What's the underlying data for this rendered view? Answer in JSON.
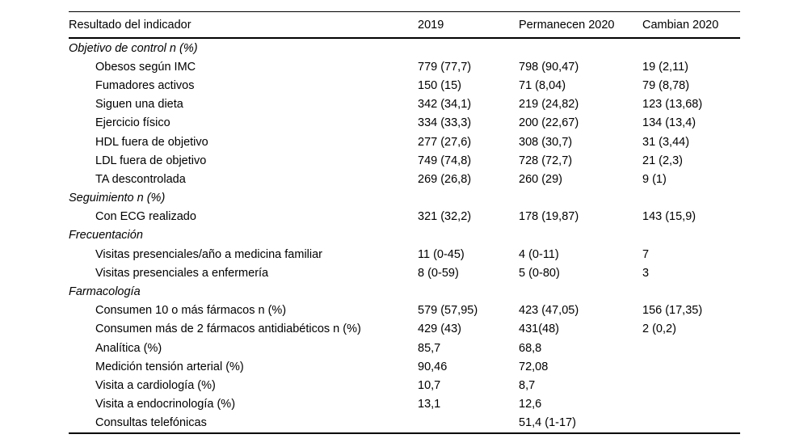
{
  "table": {
    "columns": [
      "Resultado del indicador",
      "2019",
      "Permanecen 2020",
      "Cambian 2020"
    ],
    "rows": [
      {
        "type": "section",
        "label": "Objetivo de control n (%)",
        "values": [
          "",
          "",
          ""
        ]
      },
      {
        "type": "item",
        "label": "Obesos según IMC",
        "values": [
          "779 (77,7)",
          "798 (90,47)",
          "19 (2,11)"
        ]
      },
      {
        "type": "item",
        "label": "Fumadores activos",
        "values": [
          "150 (15)",
          "71 (8,04)",
          "79 (8,78)"
        ]
      },
      {
        "type": "item",
        "label": "Siguen una dieta",
        "values": [
          "342 (34,1)",
          "219 (24,82)",
          "123 (13,68)"
        ]
      },
      {
        "type": "item",
        "label": "Ejercicio físico",
        "values": [
          "334 (33,3)",
          "200 (22,67)",
          "134 (13,4)"
        ]
      },
      {
        "type": "item",
        "label": "HDL fuera de objetivo",
        "values": [
          "277 (27,6)",
          "308 (30,7)",
          "31 (3,44)"
        ]
      },
      {
        "type": "item",
        "label": "LDL fuera de objetivo",
        "values": [
          "749 (74,8)",
          "728 (72,7)",
          "21 (2,3)"
        ]
      },
      {
        "type": "item",
        "label": "TA descontrolada",
        "values": [
          "269 (26,8)",
          "260 (29)",
          "9 (1)"
        ]
      },
      {
        "type": "section",
        "label": "Seguimiento n (%)",
        "values": [
          "",
          "",
          ""
        ]
      },
      {
        "type": "item",
        "label": "Con ECG realizado",
        "values": [
          "321 (32,2)",
          "178 (19,87)",
          "143 (15,9)"
        ]
      },
      {
        "type": "section",
        "label": "Frecuentación",
        "values": [
          "",
          "",
          ""
        ]
      },
      {
        "type": "item",
        "label": "Visitas presenciales/año a medicina familiar",
        "values": [
          "11 (0-45)",
          "4 (0-11)",
          "7"
        ]
      },
      {
        "type": "item",
        "label": "Visitas presenciales a enfermería",
        "values": [
          "8 (0-59)",
          "5 (0-80)",
          "3"
        ]
      },
      {
        "type": "section",
        "label": "Farmacología",
        "values": [
          "",
          "",
          ""
        ]
      },
      {
        "type": "item",
        "label": "Consumen 10 o más fármacos n (%)",
        "values": [
          "579 (57,95)",
          "423 (47,05)",
          "156 (17,35)"
        ]
      },
      {
        "type": "item",
        "label": "Consumen más de 2 fármacos antidiabéticos n (%)",
        "values": [
          "429 (43)",
          "431(48)",
          "2 (0,2)"
        ]
      },
      {
        "type": "item",
        "label": "Analítica (%)",
        "values": [
          "85,7",
          "68,8",
          ""
        ]
      },
      {
        "type": "item",
        "label": "Medición tensión arterial (%)",
        "values": [
          "90,46",
          "72,08",
          ""
        ]
      },
      {
        "type": "item",
        "label": "Visita a cardiología (%)",
        "values": [
          "10,7",
          "8,7",
          ""
        ]
      },
      {
        "type": "item",
        "label": "Visita a endocrinología (%)",
        "values": [
          "13,1",
          "12,6",
          ""
        ]
      },
      {
        "type": "item",
        "label": "Consultas telefónicas",
        "values": [
          "",
          "51,4 (1-17)",
          ""
        ]
      }
    ]
  }
}
